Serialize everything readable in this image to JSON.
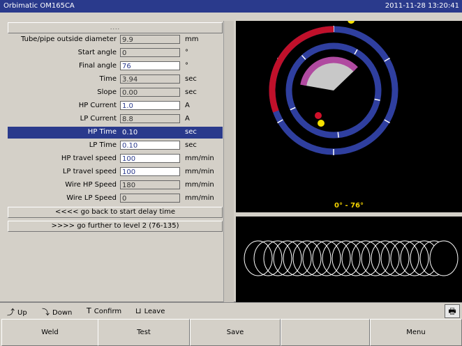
{
  "window": {
    "title": "Orbimatic OM165CA",
    "datetime": "2011-11-28 13:20:41"
  },
  "left": {
    "header_dots": "....",
    "params": [
      {
        "label": "Tube/pipe outside diameter",
        "value": "9.9",
        "unit": "mm",
        "editable": false,
        "selected": false
      },
      {
        "label": "Start angle",
        "value": "0",
        "unit": "°",
        "editable": false,
        "selected": false
      },
      {
        "label": "Final angle",
        "value": "76",
        "unit": "°",
        "editable": true,
        "selected": false
      },
      {
        "label": "Time",
        "value": "3.94",
        "unit": "sec",
        "editable": false,
        "selected": false
      },
      {
        "label": "Slope",
        "value": "0.00",
        "unit": "sec",
        "editable": false,
        "selected": false
      },
      {
        "label": "HP Current",
        "value": "1.0",
        "unit": "A",
        "editable": true,
        "selected": false
      },
      {
        "label": "LP Current",
        "value": "8.8",
        "unit": "A",
        "editable": false,
        "selected": false
      },
      {
        "label": "HP Time",
        "value": "0.10",
        "unit": "sec",
        "editable": true,
        "selected": true
      },
      {
        "label": "LP Time",
        "value": "0.10",
        "unit": "sec",
        "editable": true,
        "selected": false
      },
      {
        "label": "HP travel speed",
        "value": "100",
        "unit": "mm/min",
        "editable": true,
        "selected": false
      },
      {
        "label": "LP travel speed",
        "value": "100",
        "unit": "mm/min",
        "editable": true,
        "selected": false
      },
      {
        "label": "Wire HP Speed",
        "value": "180",
        "unit": "mm/min",
        "editable": false,
        "selected": false
      },
      {
        "label": "Wire LP Speed",
        "value": "0",
        "unit": "mm/min",
        "editable": false,
        "selected": false
      }
    ],
    "nav_back": "<<<< go back to start delay time",
    "nav_forward": ">>>> go further to level 2 (76-135)"
  },
  "preview": {
    "range_label": "0° - 76°",
    "start_angle": 0,
    "final_angle": 76,
    "colors": {
      "ring": "#2f3f9f",
      "arc": "#c0102a",
      "sector_fill": "#c8c8c8",
      "sector_edge": "#b04aa0",
      "marker": "#f5e000",
      "marker_start": "#d0102a"
    }
  },
  "hints": [
    {
      "icon": "up-arrow-icon",
      "glyph": "⤴",
      "label": "Up"
    },
    {
      "icon": "down-arrow-icon",
      "glyph": "⤵",
      "label": "Down"
    },
    {
      "icon": "confirm-icon",
      "glyph": "Т",
      "label": "Confirm"
    },
    {
      "icon": "leave-icon",
      "glyph": "⊔",
      "label": "Leave"
    }
  ],
  "printer_icon": "printer-icon",
  "buttons": {
    "weld": "Weld",
    "test": "Test",
    "save": "Save",
    "blank": "",
    "menu": "Menu"
  }
}
